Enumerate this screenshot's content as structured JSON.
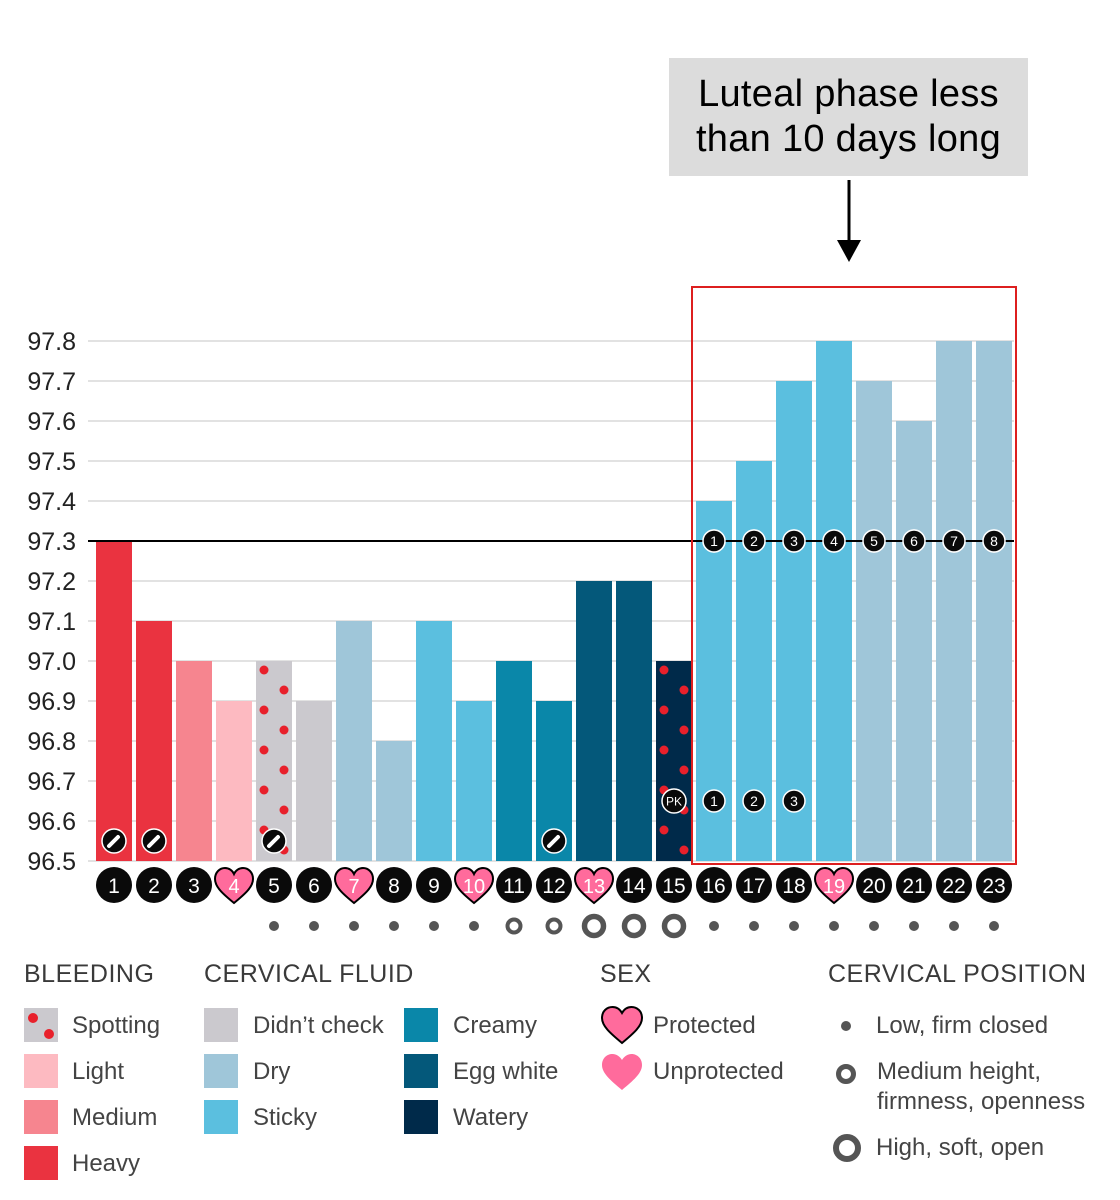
{
  "callout": {
    "line1": "Luteal phase less",
    "line2": "than 10 days long"
  },
  "colors": {
    "heavy": "#ea3340",
    "medium": "#f6858f",
    "light": "#fdbac1",
    "spotting_bg": "#cbc9ce",
    "spotting_dot": "#e8202b",
    "didnt_check": "#cbc9ce",
    "dry": "#9fc6d9",
    "sticky": "#5bbfdf",
    "creamy": "#0a87a9",
    "egg_white": "#04587a",
    "watery": "#002a4a",
    "heart": "#ff6b9c",
    "badge": "#0a0a0a",
    "highlight": "#dd1f1f",
    "position_dot": "#555555"
  },
  "chart_data": {
    "type": "bar",
    "ylim": [
      96.5,
      97.8
    ],
    "yticks": [
      "96.5",
      "96.6",
      "96.7",
      "96.8",
      "96.9",
      "97.0",
      "97.1",
      "97.2",
      "97.3",
      "97.4",
      "97.5",
      "97.6",
      "97.7",
      "97.8"
    ],
    "coverline": 97.3,
    "days": [
      {
        "day": "1",
        "temp": 97.3,
        "fill": "heavy",
        "sex": "none",
        "position": "none",
        "edit": true
      },
      {
        "day": "2",
        "temp": 97.1,
        "fill": "heavy",
        "sex": "none",
        "position": "none",
        "edit": true
      },
      {
        "day": "3",
        "temp": 97.0,
        "fill": "medium",
        "sex": "none",
        "position": "none"
      },
      {
        "day": "4",
        "temp": 96.9,
        "fill": "light",
        "sex": "protected",
        "position": "none"
      },
      {
        "day": "5",
        "temp": 97.0,
        "fill": "spotting",
        "sex": "none",
        "position": "low",
        "edit": true
      },
      {
        "day": "6",
        "temp": 96.9,
        "fill": "didnt_check",
        "sex": "none",
        "position": "low"
      },
      {
        "day": "7",
        "temp": 97.1,
        "fill": "dry",
        "sex": "protected",
        "position": "low"
      },
      {
        "day": "8",
        "temp": 96.8,
        "fill": "dry",
        "sex": "none",
        "position": "low"
      },
      {
        "day": "9",
        "temp": 97.1,
        "fill": "sticky",
        "sex": "none",
        "position": "low"
      },
      {
        "day": "10",
        "temp": 96.9,
        "fill": "sticky",
        "sex": "protected",
        "position": "low"
      },
      {
        "day": "11",
        "temp": 97.0,
        "fill": "creamy",
        "sex": "none",
        "position": "medium"
      },
      {
        "day": "12",
        "temp": 96.9,
        "fill": "creamy",
        "sex": "none",
        "position": "medium",
        "edit": true
      },
      {
        "day": "13",
        "temp": 97.2,
        "fill": "egg_white",
        "sex": "protected",
        "position": "high"
      },
      {
        "day": "14",
        "temp": 97.2,
        "fill": "egg_white",
        "sex": "none",
        "position": "high"
      },
      {
        "day": "15",
        "temp": 97.0,
        "fill": "watery_spot",
        "sex": "none",
        "position": "high",
        "marker": "PK"
      },
      {
        "day": "16",
        "temp": 97.4,
        "fill": "sticky",
        "sex": "none",
        "position": "low",
        "luteal": "1",
        "count": "1"
      },
      {
        "day": "17",
        "temp": 97.5,
        "fill": "sticky",
        "sex": "none",
        "position": "low",
        "luteal": "2",
        "count": "2"
      },
      {
        "day": "18",
        "temp": 97.7,
        "fill": "sticky",
        "sex": "none",
        "position": "low",
        "luteal": "3",
        "count": "3"
      },
      {
        "day": "19",
        "temp": 97.8,
        "fill": "sticky",
        "sex": "protected",
        "position": "low",
        "luteal": "4"
      },
      {
        "day": "20",
        "temp": 97.7,
        "fill": "dry",
        "sex": "none",
        "position": "low",
        "luteal": "5"
      },
      {
        "day": "21",
        "temp": 97.6,
        "fill": "dry",
        "sex": "none",
        "position": "low",
        "luteal": "6"
      },
      {
        "day": "22",
        "temp": 97.8,
        "fill": "dry",
        "sex": "none",
        "position": "low",
        "luteal": "7"
      },
      {
        "day": "23",
        "temp": 97.8,
        "fill": "dry",
        "sex": "none",
        "position": "low",
        "luteal": "8"
      }
    ],
    "highlight_days": [
      "16",
      "23"
    ]
  },
  "legend": {
    "bleeding": {
      "title": "BLEEDING",
      "items": [
        "Spotting",
        "Light",
        "Medium",
        "Heavy"
      ]
    },
    "fluid": {
      "title": "CERVICAL FLUID",
      "items": [
        "Didn’t check",
        "Dry",
        "Sticky",
        "Creamy",
        "Egg white",
        "Watery"
      ]
    },
    "sex": {
      "title": "SEX",
      "items": [
        "Protected",
        "Unprotected"
      ]
    },
    "position": {
      "title": "CERVICAL POSITION",
      "low": "Low, firm closed",
      "medium_1": "Medium height,",
      "medium_2": "firmness, openness",
      "high": "High, soft, open"
    }
  }
}
